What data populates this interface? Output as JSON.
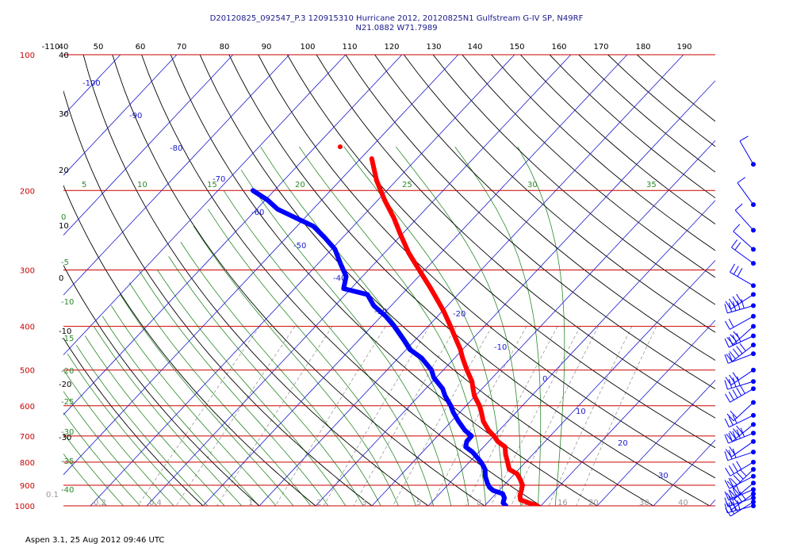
{
  "chart_data": {
    "type": "skew-t",
    "title_line1": "D20120825_092547_P.3 120915310 Hurricane 2012, 20120825N1 Gulfstream G-IV SP, N49RF",
    "title_line2": "N21.0882 W71.7989",
    "footer": "Aspen 3.1, 25 Aug 2012  09:46 UTC",
    "pressure_labels": [
      "100",
      "200",
      "300",
      "400",
      "500",
      "600",
      "700",
      "800",
      "900",
      "1000"
    ],
    "pressure_values": [
      100,
      200,
      300,
      400,
      500,
      600,
      700,
      800,
      900,
      1000
    ],
    "top_ticks": [
      "-110",
      "40",
      "50",
      "60",
      "70",
      "80",
      "90",
      "100",
      "110",
      "120",
      "130",
      "140",
      "150",
      "160",
      "170",
      "180",
      "190"
    ],
    "left_numbers": [
      "40",
      "30",
      "20",
      "10",
      "0",
      "-10",
      "-20",
      "-30"
    ],
    "isotherm_labels": [
      "-100",
      "-90",
      "-80",
      "-70",
      "-60",
      "-50",
      "-40",
      "-30",
      "-20",
      "-10",
      "0",
      "10",
      "20",
      "30"
    ],
    "theta_e_labels": [
      "5",
      "10",
      "15",
      "20",
      "25",
      "30",
      "35"
    ],
    "dry_adiabat_labels": [
      "0",
      "-5",
      "-10",
      "-15",
      "-20",
      "-25",
      "-30",
      "-35",
      "-40"
    ],
    "mixing_ratio_labels": [
      "0.1",
      "0.2",
      "0.4",
      "1",
      "2",
      "3",
      "5",
      "8",
      "12",
      "16",
      "20",
      "30",
      "40"
    ],
    "temperature_profile": [
      {
        "p": 1000,
        "t": 29.4
      },
      {
        "p": 985,
        "t": 27.4
      },
      {
        "p": 970,
        "t": 25.4
      },
      {
        "p": 950,
        "t": 24.6
      },
      {
        "p": 925,
        "t": 24.0
      },
      {
        "p": 900,
        "t": 23.3
      },
      {
        "p": 875,
        "t": 22.0
      },
      {
        "p": 850,
        "t": 20.5
      },
      {
        "p": 830,
        "t": 18.3
      },
      {
        "p": 800,
        "t": 16.8
      },
      {
        "p": 770,
        "t": 15.2
      },
      {
        "p": 740,
        "t": 13.8
      },
      {
        "p": 720,
        "t": 11.6
      },
      {
        "p": 700,
        "t": 10.0
      },
      {
        "p": 680,
        "t": 8.1
      },
      {
        "p": 650,
        "t": 5.7
      },
      {
        "p": 620,
        "t": 3.8
      },
      {
        "p": 600,
        "t": 2.4
      },
      {
        "p": 570,
        "t": -0.2
      },
      {
        "p": 550,
        "t": -1.6
      },
      {
        "p": 530,
        "t": -3.0
      },
      {
        "p": 500,
        "t": -5.8
      },
      {
        "p": 470,
        "t": -8.6
      },
      {
        "p": 450,
        "t": -10.4
      },
      {
        "p": 430,
        "t": -12.6
      },
      {
        "p": 400,
        "t": -16.0
      },
      {
        "p": 370,
        "t": -19.8
      },
      {
        "p": 350,
        "t": -22.7
      },
      {
        "p": 330,
        "t": -25.8
      },
      {
        "p": 300,
        "t": -31.0
      },
      {
        "p": 275,
        "t": -35.7
      },
      {
        "p": 250,
        "t": -40.3
      },
      {
        "p": 230,
        "t": -44.2
      },
      {
        "p": 210,
        "t": -48.8
      },
      {
        "p": 190,
        "t": -53.5
      },
      {
        "p": 170,
        "t": -58.0
      }
    ],
    "dewpoint_profile": [
      {
        "p": 1000,
        "t": 23.8
      },
      {
        "p": 985,
        "t": 22.8
      },
      {
        "p": 960,
        "t": 22.2
      },
      {
        "p": 940,
        "t": 21.2
      },
      {
        "p": 925,
        "t": 19.0
      },
      {
        "p": 910,
        "t": 17.8
      },
      {
        "p": 890,
        "t": 16.7
      },
      {
        "p": 860,
        "t": 15.2
      },
      {
        "p": 830,
        "t": 14.0
      },
      {
        "p": 800,
        "t": 12.1
      },
      {
        "p": 760,
        "t": 8.9
      },
      {
        "p": 740,
        "t": 6.8
      },
      {
        "p": 720,
        "t": 6.1
      },
      {
        "p": 700,
        "t": 6.0
      },
      {
        "p": 680,
        "t": 3.9
      },
      {
        "p": 650,
        "t": 1.3
      },
      {
        "p": 620,
        "t": -1.2
      },
      {
        "p": 600,
        "t": -2.7
      },
      {
        "p": 570,
        "t": -5.4
      },
      {
        "p": 550,
        "t": -7.0
      },
      {
        "p": 520,
        "t": -10.4
      },
      {
        "p": 500,
        "t": -12.1
      },
      {
        "p": 470,
        "t": -15.9
      },
      {
        "p": 450,
        "t": -19.4
      },
      {
        "p": 430,
        "t": -21.9
      },
      {
        "p": 400,
        "t": -26.0
      },
      {
        "p": 380,
        "t": -29.2
      },
      {
        "p": 360,
        "t": -33.1
      },
      {
        "p": 340,
        "t": -36.1
      },
      {
        "p": 330,
        "t": -41.3
      },
      {
        "p": 310,
        "t": -42.9
      },
      {
        "p": 290,
        "t": -46.1
      },
      {
        "p": 270,
        "t": -49.4
      },
      {
        "p": 255,
        "t": -53.0
      },
      {
        "p": 240,
        "t": -57.1
      },
      {
        "p": 230,
        "t": -61.6
      },
      {
        "p": 220,
        "t": -66.3
      },
      {
        "p": 210,
        "t": -69.6
      },
      {
        "p": 200,
        "t": -73.8
      }
    ],
    "isolated_temperature_point": {
      "p": 160,
      "t": -65.6
    },
    "wind_levels": [
      175,
      215,
      245,
      270,
      290,
      325,
      340,
      360,
      380,
      400,
      420,
      440,
      460,
      500,
      530,
      550,
      590,
      630,
      660,
      690,
      720,
      760,
      800,
      830,
      860,
      890,
      920,
      940,
      960,
      980,
      1000
    ],
    "colors": {
      "isobar": "#cc0000",
      "isotherm": "#1a1acc",
      "dry_adiabat": "#000000",
      "moist_adiabat": "#2a8a2a",
      "mixing_ratio": "#999999",
      "temperature": "#ff0000",
      "dewpoint": "#0000ff",
      "wind": "#0000ff"
    }
  }
}
